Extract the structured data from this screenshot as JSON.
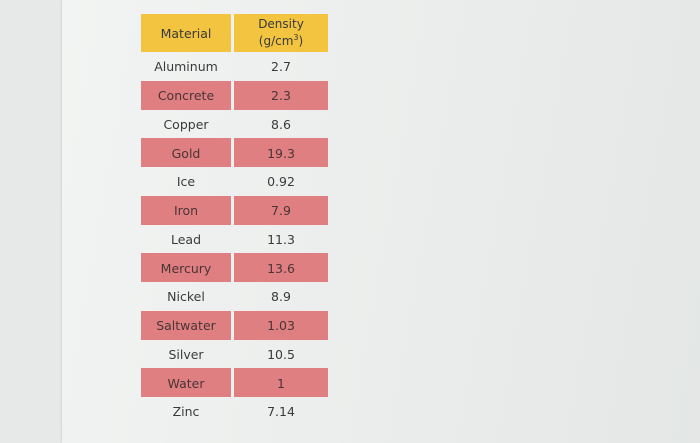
{
  "table": {
    "header": {
      "material": "Material",
      "density_line1": "Density",
      "density_unit_prefix": "(g/cm",
      "density_unit_exp": "3",
      "density_unit_suffix": ")"
    },
    "rows": [
      {
        "material": "Aluminum",
        "density": "2.7",
        "highlighted": false
      },
      {
        "material": "Concrete",
        "density": "2.3",
        "highlighted": true
      },
      {
        "material": "Copper",
        "density": "8.6",
        "highlighted": false
      },
      {
        "material": "Gold",
        "density": "19.3",
        "highlighted": true
      },
      {
        "material": "Ice",
        "density": "0.92",
        "highlighted": false
      },
      {
        "material": "Iron",
        "density": "7.9",
        "highlighted": true
      },
      {
        "material": "Lead",
        "density": "11.3",
        "highlighted": false
      },
      {
        "material": "Mercury",
        "density": "13.6",
        "highlighted": true
      },
      {
        "material": "Nickel",
        "density": "8.9",
        "highlighted": false
      },
      {
        "material": "Saltwater",
        "density": "1.03",
        "highlighted": true
      },
      {
        "material": "Silver",
        "density": "10.5",
        "highlighted": false
      },
      {
        "material": "Water",
        "density": "1",
        "highlighted": true
      },
      {
        "material": "Zinc",
        "density": "7.14",
        "highlighted": false
      }
    ]
  },
  "colors": {
    "header_fill": "#f2c43f",
    "highlight_fill": "#df7f82",
    "page_background": "#eceeed"
  }
}
